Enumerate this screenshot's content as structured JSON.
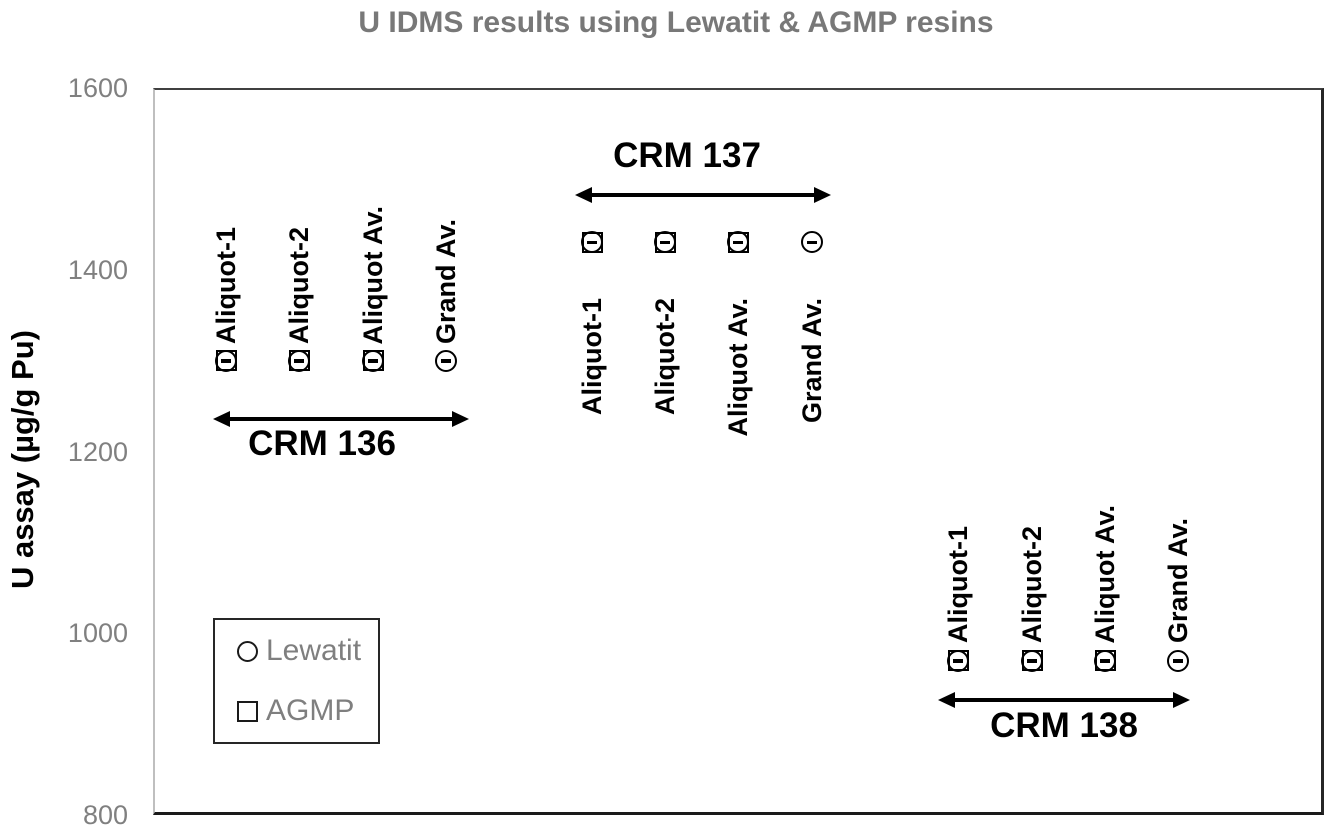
{
  "chart_data": {
    "type": "scatter",
    "title": "U IDMS results using Lewatit & AGMP resins",
    "ylabel": "U assay (µg/g Pu)",
    "xlabel": "",
    "ylim": [
      800,
      1600
    ],
    "yticks": [
      1600,
      1400,
      1200,
      1000,
      800
    ],
    "grid": false,
    "legend_position": "lower-left-inside",
    "legend": [
      {
        "marker": "circle",
        "label": "Lewatit"
      },
      {
        "marker": "square",
        "label": "AGMP"
      }
    ],
    "groups": [
      {
        "name": "CRM 136",
        "labels_position": "above",
        "points": [
          {
            "label": "Aliquot-1",
            "y": 1300,
            "markers": [
              "Lewatit",
              "AGMP"
            ]
          },
          {
            "label": "Aliquot-2",
            "y": 1300,
            "markers": [
              "Lewatit",
              "AGMP"
            ]
          },
          {
            "label": "Aliquot Av.",
            "y": 1300,
            "markers": [
              "Lewatit",
              "AGMP"
            ]
          },
          {
            "label": "Grand Av.",
            "y": 1300,
            "markers": [
              "Lewatit"
            ]
          }
        ]
      },
      {
        "name": "CRM 137",
        "labels_position": "below",
        "points": [
          {
            "label": "Aliquot-1",
            "y": 1430,
            "markers": [
              "Lewatit",
              "AGMP"
            ]
          },
          {
            "label": "Aliquot-2",
            "y": 1430,
            "markers": [
              "Lewatit",
              "AGMP"
            ]
          },
          {
            "label": "Aliquot Av.",
            "y": 1430,
            "markers": [
              "Lewatit",
              "AGMP"
            ]
          },
          {
            "label": "Grand Av.",
            "y": 1430,
            "markers": [
              "Lewatit"
            ]
          }
        ]
      },
      {
        "name": "CRM 138",
        "labels_position": "above",
        "points": [
          {
            "label": "Aliquot-1",
            "y": 970,
            "markers": [
              "Lewatit",
              "AGMP"
            ]
          },
          {
            "label": "Aliquot-2",
            "y": 970,
            "markers": [
              "Lewatit",
              "AGMP"
            ]
          },
          {
            "label": "Aliquot Av.",
            "y": 970,
            "markers": [
              "Lewatit",
              "AGMP"
            ]
          },
          {
            "label": "Grand Av.",
            "y": 970,
            "markers": [
              "Lewatit"
            ]
          }
        ]
      }
    ]
  }
}
